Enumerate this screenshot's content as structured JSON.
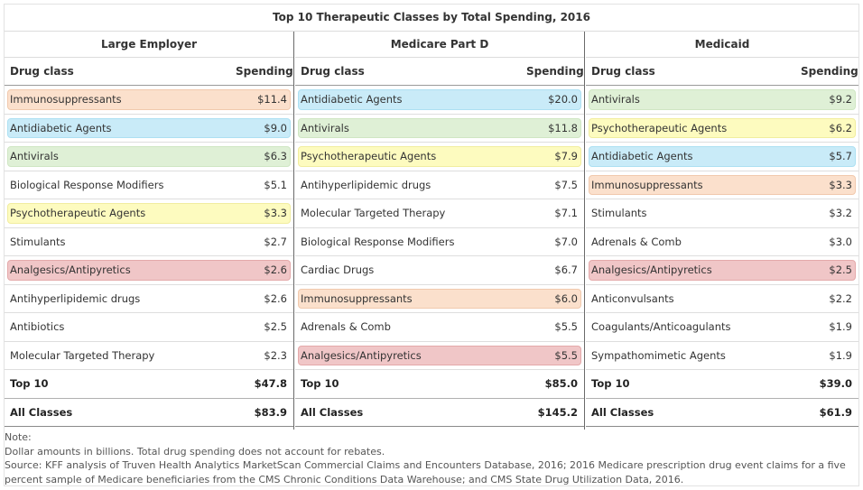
{
  "title": "Top 10 Therapeutic Classes by Total Spending, 2016",
  "headers": {
    "drug_class": "Drug class",
    "spending": "Spending"
  },
  "colors": {
    "orange": "#fbe0cc",
    "blue": "#c9ebf8",
    "green": "#dff0d6",
    "yellow": "#fdfbbf",
    "red": "#f0c6c7"
  },
  "columns": [
    {
      "title": "Large Employer",
      "rows": [
        {
          "name": "Immunosuppressants",
          "value": "$11.4",
          "color": "orange"
        },
        {
          "name": "Antidiabetic Agents",
          "value": "$9.0",
          "color": "blue"
        },
        {
          "name": "Antivirals",
          "value": "$6.3",
          "color": "green"
        },
        {
          "name": "Biological Response Modifiers",
          "value": "$5.1",
          "color": "none"
        },
        {
          "name": "Psychotherapeutic Agents",
          "value": "$3.3",
          "color": "yellow"
        },
        {
          "name": "Stimulants",
          "value": "$2.7",
          "color": "none"
        },
        {
          "name": "Analgesics/Antipyretics",
          "value": "$2.6",
          "color": "red"
        },
        {
          "name": "Antihyperlipidemic drugs",
          "value": "$2.6",
          "color": "none"
        },
        {
          "name": "Antibiotics",
          "value": "$2.5",
          "color": "none"
        },
        {
          "name": "Molecular Targeted Therapy",
          "value": "$2.3",
          "color": "none"
        }
      ],
      "totals": [
        {
          "name": "Top 10",
          "value": "$47.8"
        },
        {
          "name": "All Classes",
          "value": "$83.9"
        }
      ]
    },
    {
      "title": "Medicare Part D",
      "rows": [
        {
          "name": "Antidiabetic Agents",
          "value": "$20.0",
          "color": "blue"
        },
        {
          "name": "Antivirals",
          "value": "$11.8",
          "color": "green"
        },
        {
          "name": "Psychotherapeutic Agents",
          "value": "$7.9",
          "color": "yellow"
        },
        {
          "name": "Antihyperlipidemic drugs",
          "value": "$7.5",
          "color": "none"
        },
        {
          "name": "Molecular Targeted Therapy",
          "value": "$7.1",
          "color": "none"
        },
        {
          "name": "Biological Response Modifiers",
          "value": "$7.0",
          "color": "none"
        },
        {
          "name": "Cardiac Drugs",
          "value": "$6.7",
          "color": "none"
        },
        {
          "name": "Immunosuppressants",
          "value": "$6.0",
          "color": "orange"
        },
        {
          "name": "Adrenals & Comb",
          "value": "$5.5",
          "color": "none"
        },
        {
          "name": "Analgesics/Antipyretics",
          "value": "$5.5",
          "color": "red"
        }
      ],
      "totals": [
        {
          "name": "Top 10",
          "value": "$85.0"
        },
        {
          "name": "All Classes",
          "value": "$145.2"
        }
      ]
    },
    {
      "title": "Medicaid",
      "rows": [
        {
          "name": "Antivirals",
          "value": "$9.2",
          "color": "green"
        },
        {
          "name": "Psychotherapeutic Agents",
          "value": "$6.2",
          "color": "yellow"
        },
        {
          "name": "Antidiabetic Agents",
          "value": "$5.7",
          "color": "blue"
        },
        {
          "name": "Immunosuppressants",
          "value": "$3.3",
          "color": "orange"
        },
        {
          "name": "Stimulants",
          "value": "$3.2",
          "color": "none"
        },
        {
          "name": "Adrenals & Comb",
          "value": "$3.0",
          "color": "none"
        },
        {
          "name": "Analgesics/Antipyretics",
          "value": "$2.5",
          "color": "red"
        },
        {
          "name": "Anticonvulsants",
          "value": "$2.2",
          "color": "none"
        },
        {
          "name": "Coagulants/Anticoagulants",
          "value": "$1.9",
          "color": "none"
        },
        {
          "name": "Sympathomimetic Agents",
          "value": "$1.9",
          "color": "none"
        }
      ],
      "totals": [
        {
          "name": "Top 10",
          "value": "$39.0"
        },
        {
          "name": "All Classes",
          "value": "$61.9"
        }
      ]
    }
  ],
  "notes": {
    "label": "Note:",
    "line1": "Dollar amounts in billions. Total drug spending does not account for rebates.",
    "line2": "Source: KFF analysis of Truven Health Analytics MarketScan Commercial Claims and Encounters Database, 2016; 2016 Medicare prescription drug event claims for a five percent sample of Medicare beneficiaries from the CMS Chronic Conditions Data Warehouse; and CMS State Drug Utilization Data, 2016."
  }
}
